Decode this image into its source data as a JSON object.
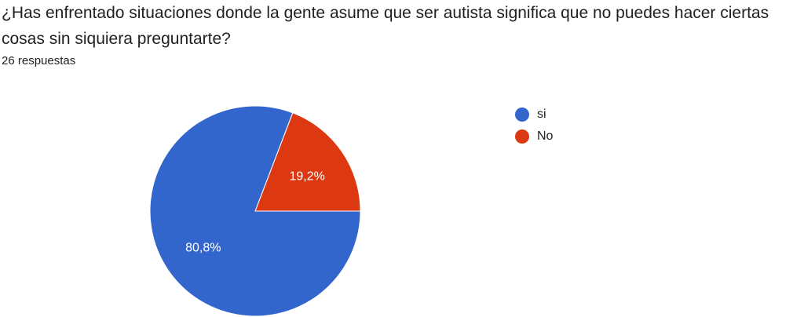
{
  "question": "¿Has enfrentado situaciones donde la gente asume que ser autista significa que no puedes hacer ciertas cosas sin siquiera preguntarte?",
  "responses_text": "26 respuestas",
  "chart_data": {
    "type": "pie",
    "total_responses": 26,
    "slices": [
      {
        "label": "si",
        "percent": 80.8,
        "percent_label": "80,8%",
        "color": "#3366cc"
      },
      {
        "label": "No",
        "percent": 19.2,
        "percent_label": "19,2%",
        "color": "#dc3912"
      }
    ],
    "start_angle_deg": 0,
    "direction": "counterclockwise",
    "legend_position": "right"
  }
}
